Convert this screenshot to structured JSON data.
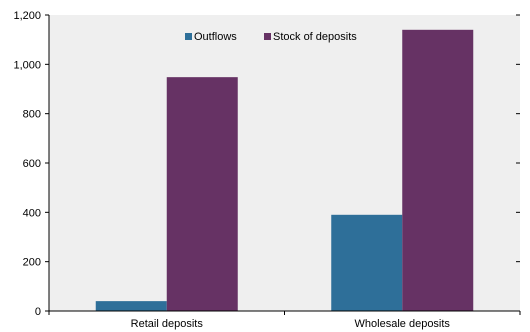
{
  "chart_data": {
    "type": "bar",
    "title": "",
    "xlabel": "",
    "ylabel": "",
    "categories": [
      "Retail deposits",
      "Wholesale deposits"
    ],
    "series": [
      {
        "name": "Outflows",
        "color": "#2e6f99",
        "values": [
          40,
          390
        ]
      },
      {
        "name": "Stock of deposits",
        "color": "#663264",
        "values": [
          948,
          1140
        ]
      }
    ],
    "ylim": [
      0,
      1200
    ],
    "yticks": [
      "0",
      "200",
      "400",
      "600",
      "800",
      "1,000",
      "1,200"
    ],
    "ytick_values": [
      0,
      200,
      400,
      600,
      800,
      1000,
      1200
    ],
    "legend_position": "top-center",
    "grid": false,
    "plot_background": "#efefef"
  }
}
